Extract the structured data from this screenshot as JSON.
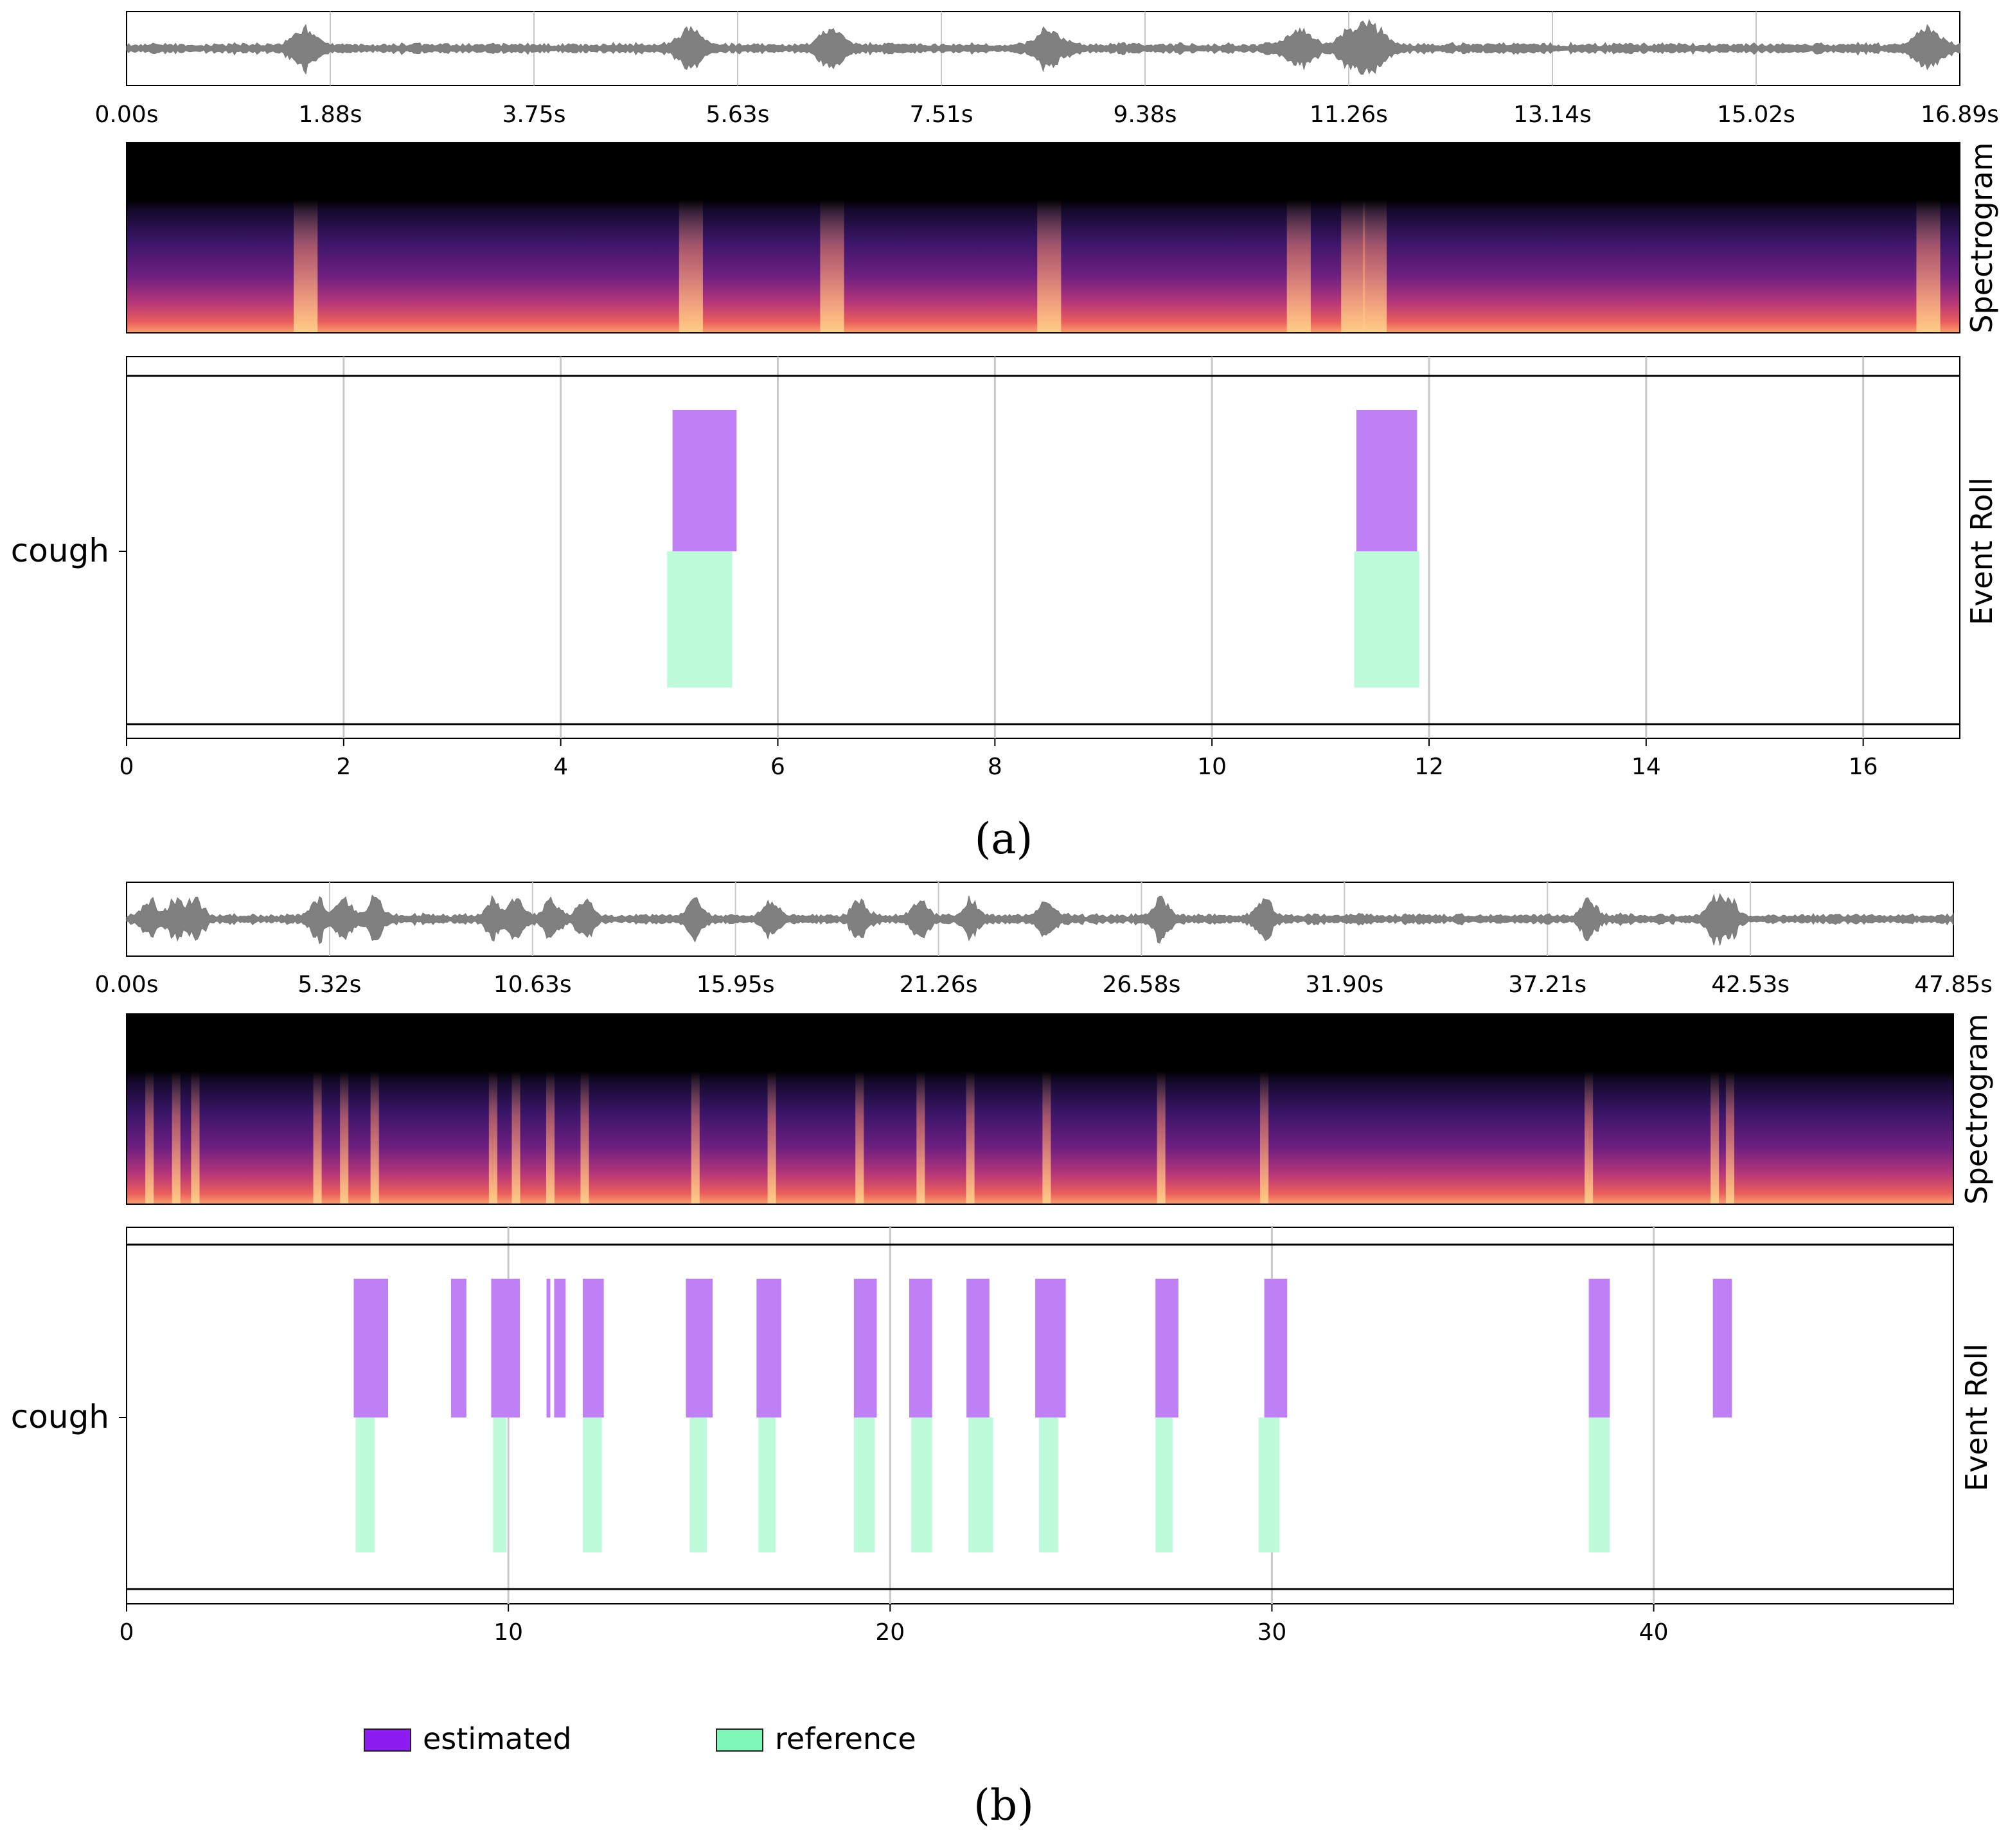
{
  "chart_data": [
    {
      "panel_label": "a",
      "type": "event-roll",
      "duration_s": 16.89,
      "waveform_ticks": [
        "0.00s",
        "1.88s",
        "3.75s",
        "5.63s",
        "7.51s",
        "9.38s",
        "11.26s",
        "13.14s",
        "15.02s",
        "16.89s"
      ],
      "spectrogram_label": "Spectrogram",
      "event_roll_label": "Event Roll",
      "class_label": "cough",
      "x_ticks": [
        0,
        2,
        4,
        6,
        8,
        10,
        12,
        14,
        16
      ],
      "xlim": [
        0,
        16.89
      ],
      "bursts": [
        1.65,
        5.2,
        6.5,
        8.5,
        10.8,
        11.3,
        11.5,
        16.6
      ],
      "estimated": [
        [
          5.03,
          5.62
        ],
        [
          11.33,
          11.89
        ]
      ],
      "reference": [
        [
          4.98,
          5.58
        ],
        [
          11.31,
          11.91
        ]
      ]
    },
    {
      "panel_label": "b",
      "type": "event-roll",
      "duration_s": 47.85,
      "waveform_ticks": [
        "0.00s",
        "5.32s",
        "10.63s",
        "15.95s",
        "21.26s",
        "26.58s",
        "31.90s",
        "37.21s",
        "42.53s",
        "47.85s"
      ],
      "spectrogram_label": "Spectrogram",
      "event_roll_label": "Event Roll",
      "class_label": "cough",
      "x_ticks": [
        0,
        10,
        20,
        30,
        40
      ],
      "xlim": [
        0,
        47.85
      ],
      "bursts": [
        0.6,
        1.3,
        1.8,
        5.0,
        5.7,
        6.5,
        9.6,
        10.2,
        11.1,
        12.0,
        14.9,
        16.9,
        19.2,
        20.8,
        22.1,
        24.1,
        27.1,
        29.8,
        38.3,
        41.6,
        42.0
      ],
      "estimated": [
        [
          5.95,
          6.85
        ],
        [
          8.5,
          8.9
        ],
        [
          9.55,
          10.3
        ],
        [
          11.0,
          11.1
        ],
        [
          11.2,
          11.5
        ],
        [
          11.95,
          12.5
        ],
        [
          14.65,
          15.35
        ],
        [
          16.5,
          17.15
        ],
        [
          19.05,
          19.65
        ],
        [
          20.5,
          21.1
        ],
        [
          22.0,
          22.6
        ],
        [
          23.8,
          24.6
        ],
        [
          26.95,
          27.55
        ],
        [
          29.8,
          30.4
        ],
        [
          38.3,
          38.85
        ],
        [
          41.55,
          42.05
        ]
      ],
      "reference": [
        [
          6.0,
          6.5
        ],
        [
          9.6,
          9.95
        ],
        [
          11.95,
          12.45
        ],
        [
          14.75,
          15.2
        ],
        [
          16.55,
          17.0
        ],
        [
          19.05,
          19.6
        ],
        [
          20.55,
          21.1
        ],
        [
          22.05,
          22.7
        ],
        [
          23.9,
          24.4
        ],
        [
          26.95,
          27.4
        ],
        [
          29.65,
          30.2
        ],
        [
          38.3,
          38.85
        ]
      ]
    }
  ],
  "legend": {
    "estimated": {
      "label": "estimated",
      "color": "#bf7ff5",
      "border": "#8c1cf0"
    },
    "reference": {
      "label": "reference",
      "color": "#bdfbdb",
      "border": "#4ee0a0"
    }
  },
  "captions": {
    "a": "(a)",
    "b": "(b)"
  }
}
